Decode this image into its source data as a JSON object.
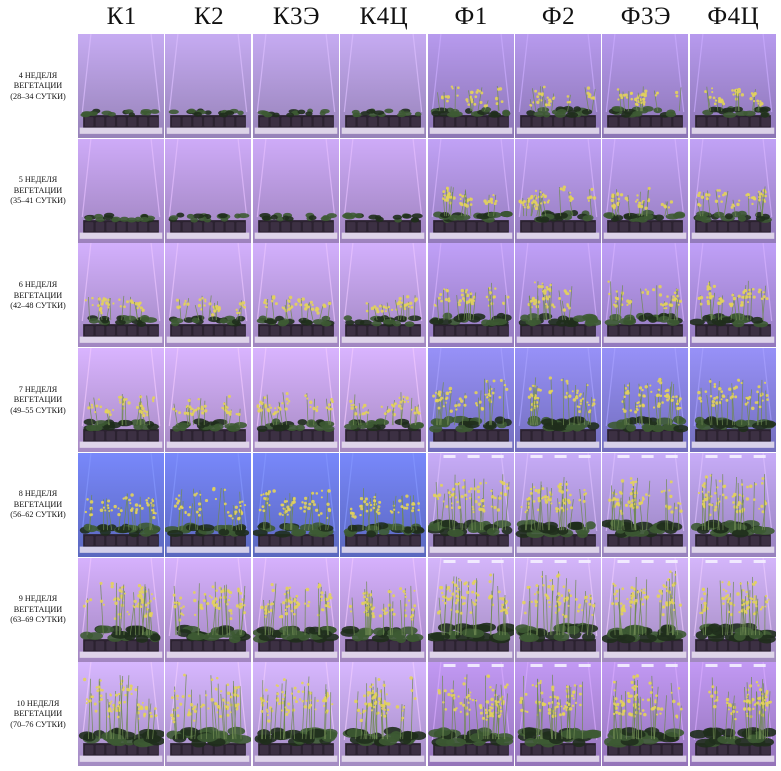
{
  "columns": [
    "К1",
    "К2",
    "К3Э",
    "К4Ц",
    "Ф1",
    "Ф2",
    "Ф3Э",
    "Ф4Ц"
  ],
  "rows": [
    {
      "week": "4 НЕДЕЛЯ",
      "word": "ВЕГЕТАЦИИ",
      "days": "(28–34 СУТКИ)",
      "stage": 0.05,
      "k_light": "#b79ee0",
      "f_light": "#a98fdc"
    },
    {
      "week": "5 НЕДЕЛЯ",
      "word": "ВЕГЕТАЦИИ",
      "days": "(35–41 СУТКИ)",
      "stage": 0.15,
      "k_light": "#bf9ee6",
      "f_light": "#b396e4"
    },
    {
      "week": "6 НЕДЕЛЯ",
      "word": "ВЕГЕТАЦИИ",
      "days": "(42–48 СУТКИ)",
      "stage": 0.3,
      "k_light": "#c3a3ea",
      "f_light": "#b294e6"
    },
    {
      "week": "7 НЕДЕЛЯ",
      "word": "ВЕГЕТАЦИИ",
      "days": "(49–55 СУТКИ)",
      "stage": 0.45,
      "k_light": "#c9a7ec",
      "f_light": "#8c86e6"
    },
    {
      "week": "8 НЕДЕЛЯ",
      "word": "ВЕГЕТАЦИИ",
      "days": "(56–62 СУТКИ)",
      "stage": 0.6,
      "k_light": "#6f7ee8",
      "f_light": "#b89fe6"
    },
    {
      "week": "9 НЕДЕЛЯ",
      "word": "ВЕГЕТАЦИИ",
      "days": "(63–69 СУТКИ)",
      "stage": 0.8,
      "k_light": "#c6a4ea",
      "f_light": "#c4a8e8"
    },
    {
      "week": "10 НЕДЕЛЯ",
      "word": "ВЕГЕТАЦИИ",
      "days": "(70–76 СУТКИ)",
      "stage": 1.0,
      "k_light": "#c7a9ec",
      "f_light": "#b48ee2"
    }
  ],
  "colors": {
    "plant": "#3d5a33",
    "plant_dark": "#1f2e1c",
    "flower": "#e3d35a",
    "tray": "#2b2230",
    "shelf": "#e9e2f0"
  }
}
